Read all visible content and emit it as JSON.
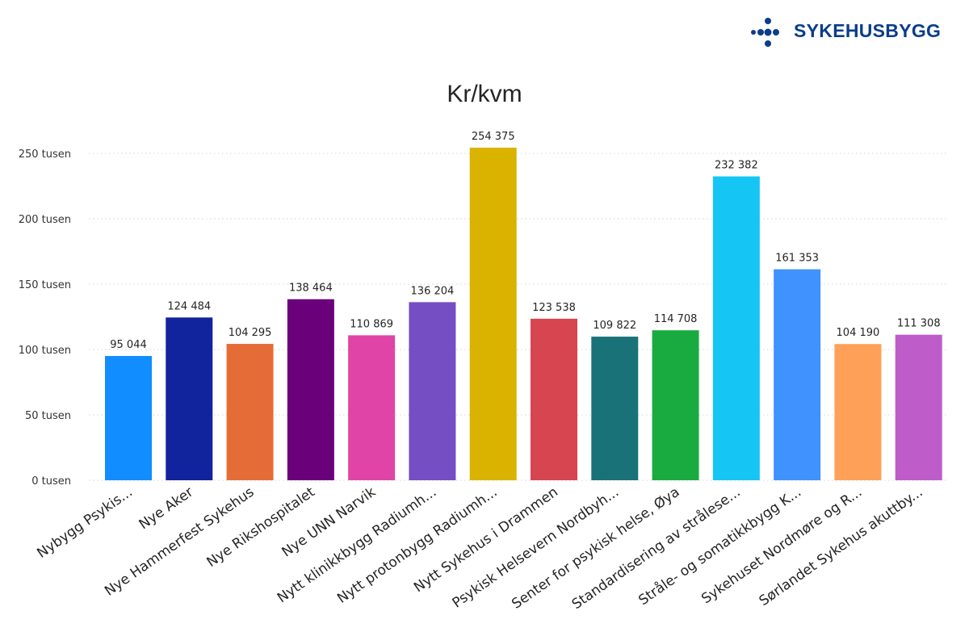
{
  "logo": {
    "text": "SYKEHUSBYGG",
    "color": "#0a3d8a"
  },
  "chart_data": {
    "type": "bar",
    "title": "Kr/kvm",
    "xlabel": "",
    "ylabel": "",
    "ylim": [
      0,
      250000
    ],
    "y_ticks": [
      {
        "value": 0,
        "label": "0 tusen"
      },
      {
        "value": 50000,
        "label": "50 tusen"
      },
      {
        "value": 100000,
        "label": "100 tusen"
      },
      {
        "value": 150000,
        "label": "150 tusen"
      },
      {
        "value": 200000,
        "label": "200 tusen"
      },
      {
        "value": 250000,
        "label": "250 tusen"
      }
    ],
    "grid": true,
    "categories": [
      "Nybygg Psykis...",
      "Nye Aker",
      "Nye Hammerfest Sykehus",
      "Nye Rikshospitalet",
      "Nye UNN Narvik",
      "Nytt klinikkbygg Radiumh...",
      "Nytt protonbygg Radiumh...",
      "Nytt Sykehus i Drammen",
      "Psykisk Helsevern Nordbyh...",
      "Senter for psykisk helse, Øya",
      "Standardisering av strålese...",
      "Stråle- og somatikkbygg K...",
      "Sykehuset Nordmøre og R...",
      "Sørlandet Sykehus akuttby..."
    ],
    "values": [
      95044,
      124484,
      104295,
      138464,
      110869,
      136204,
      254375,
      123538,
      109822,
      114708,
      232382,
      161353,
      104190,
      111308
    ],
    "value_labels": [
      "95 044",
      "124 484",
      "104 295",
      "138 464",
      "110 869",
      "136 204",
      "254 375",
      "123 538",
      "109 822",
      "114 708",
      "232 382",
      "161 353",
      "104 190",
      "111 308"
    ],
    "colors": [
      "#118DFF",
      "#12239E",
      "#E66C37",
      "#6B007B",
      "#E044A7",
      "#744EC2",
      "#D9B300",
      "#D64550",
      "#197278",
      "#1AAB40",
      "#15C6F4",
      "#4092FF",
      "#FFA058",
      "#BE5DC9"
    ]
  }
}
